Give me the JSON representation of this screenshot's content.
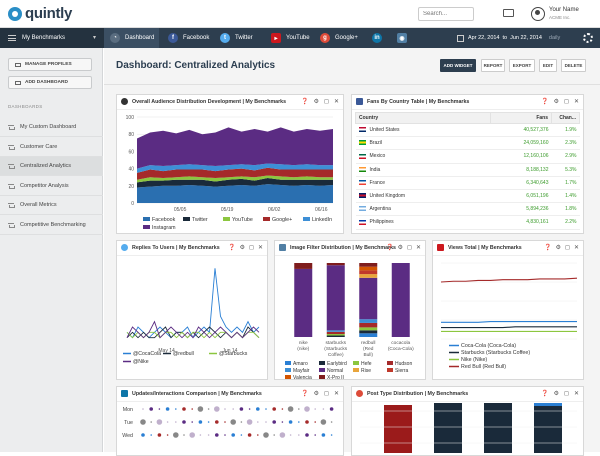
{
  "app": {
    "logo_text": "quintly"
  },
  "topbar": {
    "search_placeholder": "Search...",
    "user_name": "Your Name",
    "user_sub": "ACME Inc."
  },
  "nav": {
    "benchmark_label": "My Benchmarks",
    "tabs": [
      {
        "label": "Dashboard",
        "color": "#3b4f63"
      },
      {
        "label": "Facebook",
        "color": "#3b5998"
      },
      {
        "label": "Twitter",
        "color": "#55acee"
      },
      {
        "label": "YouTube",
        "color": "#cc181e"
      },
      {
        "label": "Google+",
        "color": "#dd4b39"
      },
      {
        "label": "",
        "icon": "linkedin-icon",
        "color": "#0e76a8"
      },
      {
        "label": "",
        "icon": "instagram-icon",
        "color": "#517fa4"
      }
    ],
    "date_from": "Apr 22, 2014",
    "date_sep": "to",
    "date_to": "Jun 22, 2014",
    "period": "daily"
  },
  "sidebar": {
    "manage_profiles": "MANAGE PROFILES",
    "add_dashboard": "ADD DASHBOARD",
    "section": "DASHBOARDS",
    "items": [
      "My Custom Dashboard",
      "Customer Care",
      "Centralized Analytics",
      "Competitor Analysis",
      "Overall Metrics",
      "Competitive Benchmarking"
    ],
    "active_index": 2
  },
  "dashboard": {
    "title": "Dashboard: Centralized Analytics",
    "actions": [
      "ADD WIDGET",
      "REPORT",
      "EXPORT",
      "EDIT",
      "DELETE"
    ]
  },
  "widgets": {
    "audience": {
      "title": "Overall Audience Distribution Development | My Benchmarks"
    },
    "fans_table": {
      "title": "Fans By Country Table | My Benchmarks",
      "columns": [
        "Country",
        "Fans",
        "Chan..."
      ],
      "rows": [
        {
          "country": "United States",
          "fans": "40,527,376",
          "change": "1.9%"
        },
        {
          "country": "Brazil",
          "fans": "24,059,160",
          "change": "2.3%"
        },
        {
          "country": "Mexico",
          "fans": "12,160,106",
          "change": "2.9%"
        },
        {
          "country": "India",
          "fans": "8,188,132",
          "change": "5.3%"
        },
        {
          "country": "France",
          "fans": "6,340,643",
          "change": "1.7%"
        },
        {
          "country": "United Kingdom",
          "fans": "6,051,196",
          "change": "1.4%"
        },
        {
          "country": "Argentina",
          "fans": "5,894,236",
          "change": "1.8%"
        },
        {
          "country": "Philippines",
          "fans": "4,830,161",
          "change": "2.2%"
        }
      ]
    },
    "replies": {
      "title": "Replies To Users | My Benchmarks"
    },
    "image_filter": {
      "title": "Image Filter Distribution | My Benchmarks"
    },
    "views": {
      "title": "Views Total | My Benchmarks"
    },
    "linkedin": {
      "title": "Updates/Interactions Comparison | My Benchmarks",
      "days": [
        "Mon",
        "Tue",
        "Wed"
      ]
    },
    "posttype": {
      "title": "Post Type Distribution | My Benchmarks"
    }
  },
  "chart_data": [
    {
      "type": "area",
      "title": "Overall Audience Distribution Development | My Benchmarks",
      "x": [
        "04/22",
        "04/26",
        "04/30",
        "05/04",
        "05/08",
        "05/12",
        "05/16",
        "05/20",
        "05/24",
        "05/28",
        "06/01",
        "06/05",
        "06/09",
        "06/13",
        "06/17",
        "06/21"
      ],
      "xticks": [
        "05/05",
        "05/19",
        "06/02",
        "06/16"
      ],
      "ylim": [
        0,
        100
      ],
      "yticks": [
        0,
        20,
        40,
        60,
        80,
        100
      ],
      "stacked": true,
      "series": [
        {
          "name": "Facebook",
          "color": "#2a6fb0",
          "values": [
            18,
            19,
            20,
            20,
            21,
            20,
            19,
            20,
            21,
            20,
            22,
            21,
            20,
            21,
            20,
            21
          ]
        },
        {
          "name": "Twitter",
          "color": "#1a2a3a",
          "values": [
            6,
            7,
            6,
            7,
            6,
            7,
            6,
            7,
            7,
            6,
            7,
            6,
            7,
            6,
            7,
            6
          ]
        },
        {
          "name": "YouTube",
          "color": "#8cc63f",
          "values": [
            3,
            4,
            3,
            3,
            4,
            3,
            4,
            3,
            3,
            4,
            3,
            4,
            3,
            4,
            3,
            3
          ]
        },
        {
          "name": "Google+",
          "color": "#a52a2a",
          "values": [
            8,
            9,
            8,
            9,
            8,
            9,
            8,
            9,
            9,
            8,
            9,
            8,
            9,
            8,
            9,
            9
          ]
        },
        {
          "name": "LinkedIn",
          "color": "#3d8fd6",
          "values": [
            5,
            5,
            6,
            5,
            6,
            5,
            6,
            5,
            5,
            6,
            5,
            6,
            5,
            6,
            5,
            5
          ]
        },
        {
          "name": "Instagram",
          "color": "#5b2c83",
          "values": [
            35,
            38,
            41,
            37,
            40,
            36,
            39,
            44,
            38,
            42,
            37,
            43,
            39,
            41,
            40,
            42
          ]
        }
      ]
    },
    {
      "type": "line",
      "title": "Replies To Users | My Benchmarks",
      "xticks": [
        "May 14",
        "Jun 14"
      ],
      "series": [
        {
          "name": "@CocaCola",
          "color": "#2a7fd4",
          "values": [
            2,
            1,
            3,
            2,
            1,
            2,
            3,
            2,
            1,
            2,
            2,
            3,
            1,
            2,
            3,
            2,
            14,
            5,
            3,
            2,
            3,
            2,
            4,
            2,
            3
          ]
        },
        {
          "name": "@redbull",
          "color": "#1a2a3a",
          "values": [
            1,
            2,
            1,
            2,
            1,
            1,
            2,
            3,
            1,
            2,
            2,
            1,
            2,
            1,
            2,
            3,
            2,
            1,
            2,
            1,
            2,
            1,
            3,
            2,
            1
          ]
        },
        {
          "name": "@Starbucks",
          "color": "#8cc63f",
          "values": [
            2,
            1,
            2,
            1,
            2,
            2,
            1,
            2,
            2,
            1,
            2,
            1,
            2,
            2,
            1,
            2,
            1,
            2,
            2,
            1,
            2,
            1,
            2,
            2,
            1
          ]
        },
        {
          "name": "@Nike",
          "color": "#5b2c83",
          "values": [
            1,
            3,
            2,
            1,
            2,
            4,
            1,
            2,
            3,
            2,
            1,
            2,
            1,
            3,
            2,
            1,
            2,
            3,
            2,
            1,
            2,
            1,
            2,
            3,
            2
          ]
        }
      ]
    },
    {
      "type": "bar",
      "stacked": true,
      "title": "Image Filter Distribution | My Benchmarks",
      "categories": [
        "nike (nike)",
        "starbucks (Starbucks Coffee)",
        "redbull (Red Bull)",
        "cocacola (Coca-Cola)"
      ],
      "series": [
        {
          "name": "Amaro",
          "color": "#2a7fd4",
          "values": [
            0,
            0,
            5,
            0
          ]
        },
        {
          "name": "Earlybird",
          "color": "#1a2a3a",
          "values": [
            0,
            2,
            4,
            0
          ]
        },
        {
          "name": "Hefe",
          "color": "#8cc63f",
          "values": [
            0,
            2,
            4,
            0
          ]
        },
        {
          "name": "Hudson",
          "color": "#a52a2a",
          "values": [
            0,
            3,
            6,
            0
          ]
        },
        {
          "name": "Mayfair",
          "color": "#3d8fd6",
          "values": [
            0,
            2,
            5,
            0
          ]
        },
        {
          "name": "Normal",
          "color": "#5b2c83",
          "values": [
            92,
            88,
            56,
            100
          ]
        },
        {
          "name": "Rise",
          "color": "#e8a53c",
          "values": [
            0,
            0,
            5,
            0
          ]
        },
        {
          "name": "Sierra",
          "color": "#c0392b",
          "values": [
            0,
            0,
            5,
            0
          ]
        },
        {
          "name": "Valencia",
          "color": "#d35400",
          "values": [
            0,
            0,
            5,
            0
          ]
        },
        {
          "name": "X-Pro II",
          "color": "#7f1d1d",
          "values": [
            8,
            3,
            5,
            0
          ]
        }
      ]
    },
    {
      "type": "line",
      "title": "Views Total | My Benchmarks",
      "series": [
        {
          "name": "Coca-Cola (Coca-Cola)",
          "color": "#2a7fd4",
          "values": [
            22,
            22,
            22,
            22,
            23,
            23,
            23,
            23,
            23,
            23,
            23,
            23
          ]
        },
        {
          "name": "Starbucks (Starbucks Coffee)",
          "color": "#1a2a3a",
          "values": [
            15,
            15,
            15,
            15,
            15,
            15,
            16,
            16,
            16,
            16,
            16,
            16
          ]
        },
        {
          "name": "Nike (Nike)",
          "color": "#8cc63f",
          "values": [
            10,
            10,
            10,
            10,
            10,
            10,
            10,
            10,
            10,
            10,
            10,
            10
          ]
        },
        {
          "name": "Red Bull (Red Bull)",
          "color": "#a52a2a",
          "values": [
            75,
            76,
            76,
            77,
            77,
            78,
            78,
            78,
            79,
            79,
            79,
            80
          ]
        }
      ]
    }
  ]
}
